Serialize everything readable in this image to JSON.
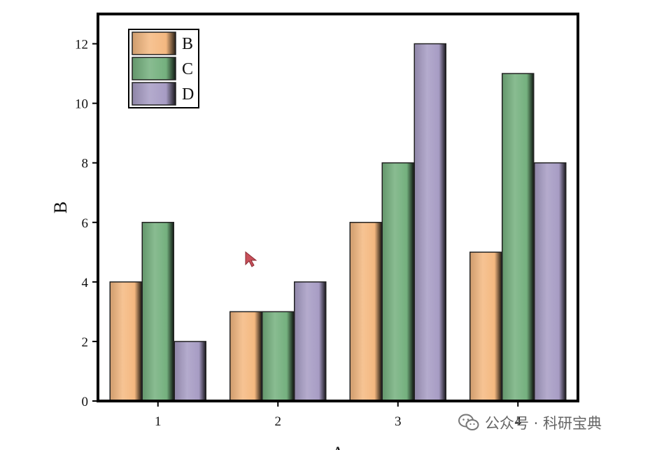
{
  "chart_data": {
    "type": "bar",
    "categories": [
      "1",
      "2",
      "3",
      "4"
    ],
    "series": [
      {
        "name": "B",
        "values": [
          4,
          3,
          6,
          5
        ],
        "color": "#f4b880"
      },
      {
        "name": "C",
        "values": [
          6,
          3,
          8,
          11
        ],
        "color": "#74b07e"
      },
      {
        "name": "D",
        "values": [
          2,
          4,
          12,
          8
        ],
        "color": "#a79cc4"
      }
    ],
    "xlabel": "A",
    "ylabel": "B",
    "ylim": [
      0,
      13
    ],
    "yticks": [
      0,
      2,
      4,
      6,
      8,
      10,
      12
    ],
    "grid": false,
    "legend_position": "top-left",
    "bar_style": "cylindrical gradient"
  },
  "watermark": {
    "icon": "wechat-icon",
    "text": "公众号 · 科研宝典"
  }
}
